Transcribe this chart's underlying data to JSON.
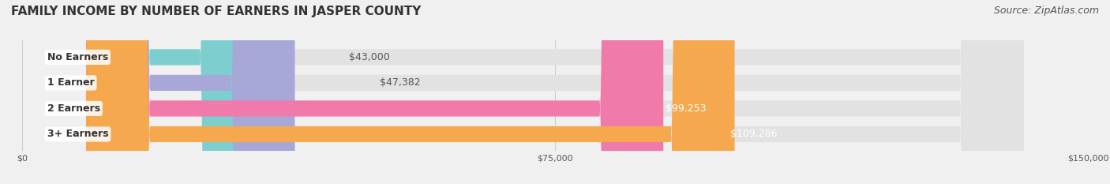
{
  "title": "FAMILY INCOME BY NUMBER OF EARNERS IN JASPER COUNTY",
  "source": "Source: ZipAtlas.com",
  "categories": [
    "No Earners",
    "1 Earner",
    "2 Earners",
    "3+ Earners"
  ],
  "values": [
    43000,
    47382,
    99253,
    109286
  ],
  "labels": [
    "$43,000",
    "$47,382",
    "$99,253",
    "$109,286"
  ],
  "bar_colors": [
    "#7dcfcf",
    "#a8a8d8",
    "#f07aaa",
    "#f5a84e"
  ],
  "label_colors": [
    "#555555",
    "#555555",
    "#ffffff",
    "#ffffff"
  ],
  "xlim": [
    0,
    150000
  ],
  "xtick_values": [
    0,
    75000,
    150000
  ],
  "xtick_labels": [
    "$0",
    "$75,000",
    "$150,000"
  ],
  "background_color": "#f0f0f0",
  "bar_bg_color": "#e2e2e2",
  "title_fontsize": 11,
  "source_fontsize": 9,
  "label_fontsize": 9,
  "category_fontsize": 9,
  "figsize": [
    14.06,
    2.33
  ],
  "dpi": 100
}
